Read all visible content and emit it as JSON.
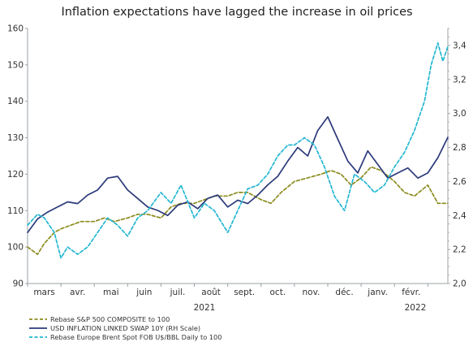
{
  "chart_data": {
    "type": "line",
    "title": "Inflation expectations have lagged the increase in oil prices",
    "x_labels": [
      "mars",
      "avr.",
      "mai",
      "juin",
      "juil.",
      "août",
      "sept.",
      "oct.",
      "nov.",
      "déc.",
      "janv.",
      "févr."
    ],
    "year_labels": [
      "2021",
      "2022"
    ],
    "y_left": {
      "range": [
        90,
        160
      ],
      "ticks": [
        "90",
        "100",
        "110",
        "120",
        "130",
        "140",
        "150",
        "160"
      ]
    },
    "y_right": {
      "range": [
        2.0,
        3.5
      ],
      "ticks": [
        "2,0",
        "2,2",
        "2,4",
        "2,6",
        "2,8",
        "3,0",
        "3,2",
        "3,4"
      ]
    },
    "x_range": [
      0,
      12.6
    ],
    "grid": false,
    "legend_position": "bottom-left",
    "series": [
      {
        "name": "Rebase S&P 500 COMPOSITE to 100",
        "axis": "left",
        "color": "#8b8b1f",
        "style": "dashed",
        "points": [
          [
            0,
            100
          ],
          [
            0.3,
            98
          ],
          [
            0.5,
            101
          ],
          [
            0.8,
            104
          ],
          [
            1.0,
            105
          ],
          [
            1.3,
            106
          ],
          [
            1.6,
            107
          ],
          [
            2.0,
            107
          ],
          [
            2.3,
            108
          ],
          [
            2.6,
            107
          ],
          [
            3.0,
            108
          ],
          [
            3.3,
            109
          ],
          [
            3.6,
            109
          ],
          [
            4.0,
            108
          ],
          [
            4.3,
            111
          ],
          [
            4.6,
            112
          ],
          [
            5.0,
            112
          ],
          [
            5.3,
            113
          ],
          [
            5.6,
            114
          ],
          [
            6.0,
            114
          ],
          [
            6.3,
            115
          ],
          [
            6.6,
            115
          ],
          [
            7.0,
            113
          ],
          [
            7.3,
            112
          ],
          [
            7.6,
            115
          ],
          [
            8.0,
            118
          ],
          [
            8.4,
            119
          ],
          [
            8.8,
            120
          ],
          [
            9.1,
            121
          ],
          [
            9.4,
            120
          ],
          [
            9.7,
            117
          ],
          [
            10.0,
            119
          ],
          [
            10.3,
            122
          ],
          [
            10.6,
            121
          ],
          [
            11.0,
            118
          ],
          [
            11.3,
            115
          ],
          [
            11.6,
            114
          ],
          [
            12.0,
            117
          ],
          [
            12.3,
            112
          ],
          [
            12.6,
            112
          ]
        ]
      },
      {
        "name": "USD INFLATION LINKED SWAP 10Y (RH Scale)",
        "axis": "right",
        "color": "#2b3a7a",
        "style": "solid",
        "points": [
          [
            0,
            2.3
          ],
          [
            0.3,
            2.38
          ],
          [
            0.6,
            2.42
          ],
          [
            0.9,
            2.45
          ],
          [
            1.2,
            2.48
          ],
          [
            1.5,
            2.47
          ],
          [
            1.8,
            2.52
          ],
          [
            2.1,
            2.55
          ],
          [
            2.4,
            2.62
          ],
          [
            2.7,
            2.63
          ],
          [
            3.0,
            2.55
          ],
          [
            3.3,
            2.5
          ],
          [
            3.6,
            2.45
          ],
          [
            3.9,
            2.43
          ],
          [
            4.2,
            2.4
          ],
          [
            4.5,
            2.46
          ],
          [
            4.8,
            2.48
          ],
          [
            5.1,
            2.44
          ],
          [
            5.4,
            2.5
          ],
          [
            5.7,
            2.52
          ],
          [
            6.0,
            2.45
          ],
          [
            6.3,
            2.49
          ],
          [
            6.6,
            2.47
          ],
          [
            6.9,
            2.52
          ],
          [
            7.2,
            2.58
          ],
          [
            7.5,
            2.63
          ],
          [
            7.8,
            2.72
          ],
          [
            8.1,
            2.8
          ],
          [
            8.4,
            2.75
          ],
          [
            8.7,
            2.9
          ],
          [
            9.0,
            2.98
          ],
          [
            9.3,
            2.85
          ],
          [
            9.6,
            2.72
          ],
          [
            9.9,
            2.65
          ],
          [
            10.2,
            2.78
          ],
          [
            10.5,
            2.7
          ],
          [
            10.8,
            2.62
          ],
          [
            11.1,
            2.65
          ],
          [
            11.4,
            2.68
          ],
          [
            11.7,
            2.62
          ],
          [
            12.0,
            2.65
          ],
          [
            12.3,
            2.74
          ],
          [
            12.6,
            2.86
          ]
        ]
      },
      {
        "name": "Rebase Europe Brent Spot FOB U$/BBL Daily to 100",
        "axis": "left",
        "color": "#22b7d1",
        "style": "dashed",
        "points": [
          [
            0,
            106
          ],
          [
            0.3,
            109
          ],
          [
            0.5,
            108
          ],
          [
            0.8,
            104
          ],
          [
            1.0,
            97
          ],
          [
            1.2,
            100
          ],
          [
            1.5,
            98
          ],
          [
            1.8,
            100
          ],
          [
            2.1,
            104
          ],
          [
            2.4,
            108
          ],
          [
            2.7,
            106
          ],
          [
            3.0,
            103
          ],
          [
            3.3,
            108
          ],
          [
            3.6,
            110
          ],
          [
            4.0,
            115
          ],
          [
            4.3,
            112
          ],
          [
            4.6,
            117
          ],
          [
            5.0,
            108
          ],
          [
            5.3,
            112
          ],
          [
            5.6,
            110
          ],
          [
            6.0,
            104
          ],
          [
            6.3,
            110
          ],
          [
            6.6,
            116
          ],
          [
            6.9,
            117
          ],
          [
            7.2,
            120
          ],
          [
            7.5,
            125
          ],
          [
            7.8,
            128
          ],
          [
            8.0,
            128
          ],
          [
            8.3,
            130
          ],
          [
            8.6,
            128
          ],
          [
            8.9,
            122
          ],
          [
            9.2,
            114
          ],
          [
            9.5,
            110
          ],
          [
            9.8,
            120
          ],
          [
            10.1,
            118
          ],
          [
            10.4,
            115
          ],
          [
            10.7,
            117
          ],
          [
            11.0,
            122
          ],
          [
            11.3,
            126
          ],
          [
            11.6,
            132
          ],
          [
            11.9,
            140
          ],
          [
            12.1,
            150
          ],
          [
            12.3,
            156
          ],
          [
            12.45,
            151
          ],
          [
            12.6,
            155
          ]
        ]
      }
    ]
  }
}
